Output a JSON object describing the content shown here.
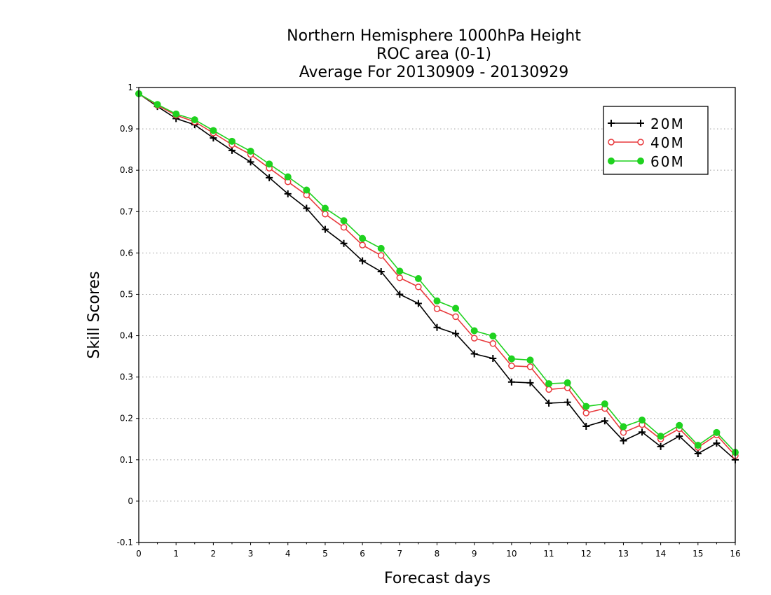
{
  "chart_data": {
    "type": "line",
    "title_lines": [
      "Northern Hemisphere 1000hPa Height",
      "ROC area (0-1)",
      "Average For 20130909 - 20130929"
    ],
    "xlabel": "Forecast days",
    "ylabel": "Skill Scores",
    "xlim": [
      0,
      16
    ],
    "ylim": [
      -0.1,
      1
    ],
    "x_ticks": [
      "0",
      "1",
      "2",
      "3",
      "4",
      "5",
      "6",
      "7",
      "8",
      "9",
      "10",
      "11",
      "12",
      "13",
      "14",
      "15",
      "16"
    ],
    "y_ticks": [
      -0.1,
      0,
      0.1,
      0.2,
      0.3,
      0.4,
      0.5,
      0.6,
      0.7,
      0.8,
      0.9,
      1
    ],
    "y_tick_labels": [
      "-0.1",
      "0",
      "0.1",
      "0.2",
      "0.3",
      "0.4",
      "0.5",
      "0.6",
      "0.7",
      "0.8",
      "0.9",
      "1"
    ],
    "grid": "horizontal-dotted",
    "legend_position": "top-right",
    "x": [
      0,
      0.5,
      1,
      1.5,
      2,
      2.5,
      3,
      3.5,
      4,
      4.5,
      5,
      5.5,
      6,
      6.5,
      7,
      7.5,
      8,
      8.5,
      9,
      9.5,
      10,
      10.5,
      11,
      11.5,
      12,
      12.5,
      13,
      13.5,
      14,
      14.5,
      15,
      15.5,
      16
    ],
    "series": [
      {
        "name": "20M",
        "color": "#000000",
        "marker": "plus",
        "values": [
          0.985,
          0.954,
          0.925,
          0.91,
          0.878,
          0.848,
          0.82,
          0.782,
          0.743,
          0.708,
          0.657,
          0.623,
          0.581,
          0.555,
          0.5,
          0.478,
          0.42,
          0.405,
          0.356,
          0.345,
          0.288,
          0.286,
          0.237,
          0.239,
          0.181,
          0.194,
          0.146,
          0.167,
          0.132,
          0.157,
          0.115,
          0.14,
          0.1
        ]
      },
      {
        "name": "40M",
        "color": "#e8393c",
        "marker": "open-circle",
        "values": [
          0.985,
          0.957,
          0.933,
          0.917,
          0.89,
          0.862,
          0.838,
          0.805,
          0.772,
          0.74,
          0.694,
          0.662,
          0.619,
          0.594,
          0.54,
          0.518,
          0.465,
          0.446,
          0.394,
          0.381,
          0.327,
          0.325,
          0.27,
          0.274,
          0.213,
          0.224,
          0.166,
          0.185,
          0.15,
          0.175,
          0.13,
          0.16,
          0.11
        ]
      },
      {
        "name": "60M",
        "color": "#1fd21f",
        "marker": "filled-circle",
        "values": [
          0.985,
          0.959,
          0.936,
          0.922,
          0.896,
          0.87,
          0.846,
          0.815,
          0.784,
          0.752,
          0.708,
          0.678,
          0.635,
          0.611,
          0.556,
          0.538,
          0.484,
          0.466,
          0.412,
          0.399,
          0.344,
          0.341,
          0.284,
          0.286,
          0.229,
          0.235,
          0.18,
          0.196,
          0.157,
          0.183,
          0.135,
          0.166,
          0.118
        ]
      }
    ]
  }
}
